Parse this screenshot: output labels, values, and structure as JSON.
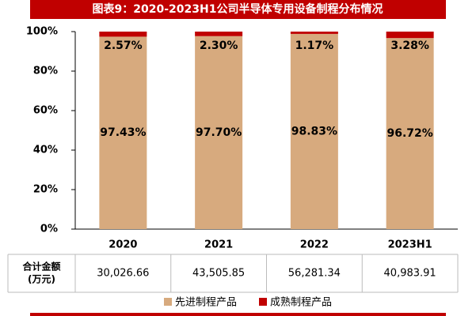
{
  "chart_data": {
    "type": "stacked_bar",
    "title": "图表9：2020-2023H1公司半导体专用设备制程分布情况",
    "categories": [
      "2020",
      "2021",
      "2022",
      "2023H1"
    ],
    "series": [
      {
        "name": "先进制程产品",
        "color": "#d7aa7e",
        "values": [
          97.43,
          97.7,
          98.83,
          96.72
        ],
        "value_labels": [
          "97.43%",
          "97.70%",
          "98.83%",
          "96.72%"
        ]
      },
      {
        "name": "成熟制程产品",
        "color": "#c00000",
        "values": [
          2.57,
          2.3,
          1.17,
          3.28
        ],
        "value_labels": [
          "2.57%",
          "2.30%",
          "1.17%",
          "3.28%"
        ]
      }
    ],
    "ylim": [
      0,
      100
    ],
    "yticks": [
      {
        "value": 0,
        "label": "0%"
      },
      {
        "value": 20,
        "label": "20%"
      },
      {
        "value": 40,
        "label": "40%"
      },
      {
        "value": 60,
        "label": "60%"
      },
      {
        "value": 80,
        "label": "80%"
      },
      {
        "value": 100,
        "label": "100%"
      }
    ],
    "table": {
      "row_label": [
        "合计金额",
        "(万元)"
      ],
      "totals": [
        "30,026.66",
        "43,505.85",
        "56,281.34",
        "40,983.91"
      ]
    }
  }
}
